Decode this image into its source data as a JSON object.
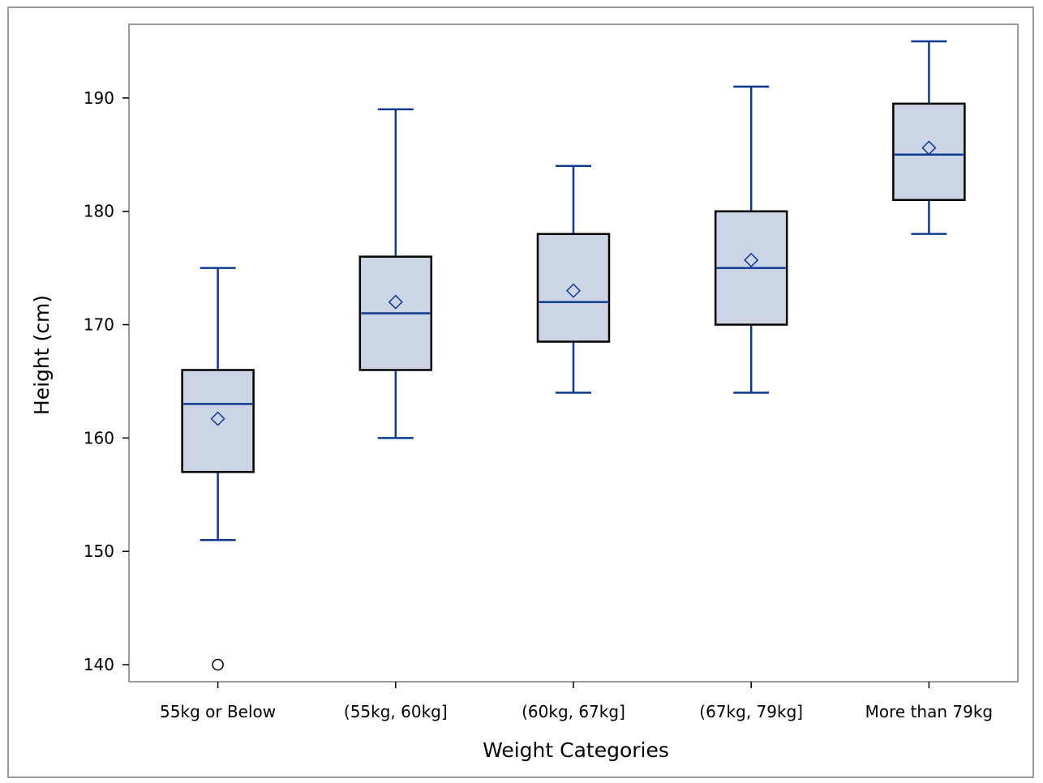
{
  "chart_data": {
    "type": "boxplot",
    "xlabel": "Weight Categories",
    "ylabel": "Height (cm)",
    "ylim": [
      138.5,
      196.5
    ],
    "yticks": [
      140,
      150,
      160,
      170,
      180,
      190
    ],
    "categories": [
      "55kg or Below",
      "(55kg, 60kg]",
      "(60kg, 67kg]",
      "(67kg, 79kg]",
      "More than 79kg"
    ],
    "boxes": [
      {
        "category": "55kg or Below",
        "whisker_low": 151,
        "q1": 157,
        "median": 163,
        "mean": 161.7,
        "q3": 166,
        "whisker_high": 175,
        "outliers": [
          140
        ]
      },
      {
        "category": "(55kg, 60kg]",
        "whisker_low": 160,
        "q1": 166,
        "median": 171,
        "mean": 172,
        "q3": 176,
        "whisker_high": 189,
        "outliers": []
      },
      {
        "category": "(60kg, 67kg]",
        "whisker_low": 164,
        "q1": 168.5,
        "median": 172,
        "mean": 173,
        "q3": 178,
        "whisker_high": 184,
        "outliers": []
      },
      {
        "category": "(67kg, 79kg]",
        "whisker_low": 164,
        "q1": 170,
        "median": 175,
        "mean": 175.7,
        "q3": 180,
        "whisker_high": 191,
        "outliers": []
      },
      {
        "category": "More than 79kg",
        "whisker_low": 178,
        "q1": 181,
        "median": 185,
        "mean": 185.6,
        "q3": 189.5,
        "whisker_high": 195,
        "outliers": []
      }
    ],
    "colors": {
      "box_fill": "#cbd5e5",
      "box_edge": "#000000",
      "whisker": "#0c3a93",
      "median": "#0c3a93",
      "mean_marker": "#0c3a93",
      "outlier": "#000000",
      "frame": "#9a9a9a"
    }
  }
}
